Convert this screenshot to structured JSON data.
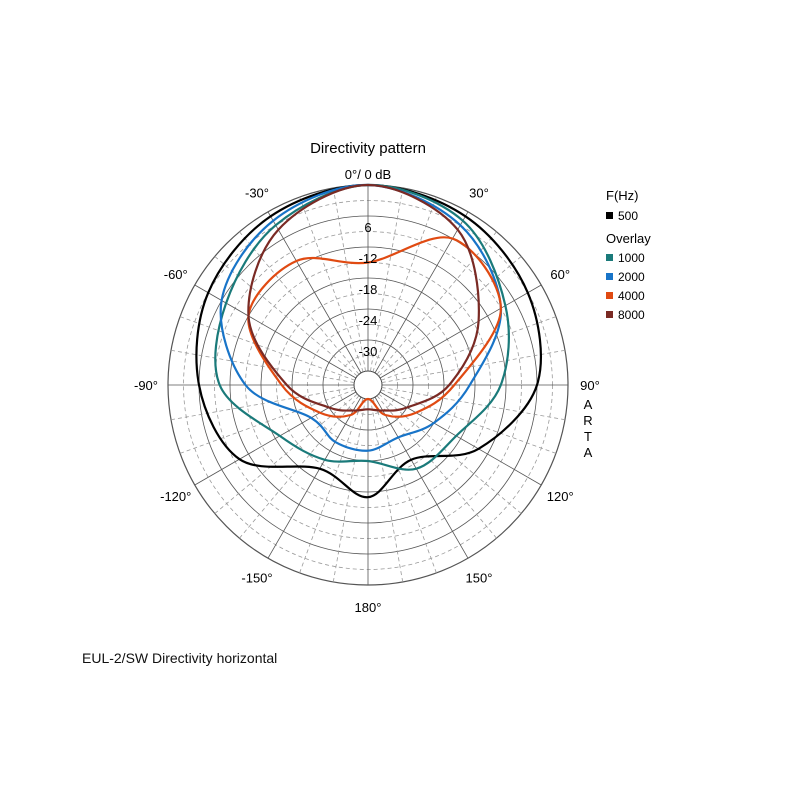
{
  "chart_data": {
    "type": "polar-line",
    "title": "Directivity pattern",
    "radial_unit": "dB",
    "radial_range": [
      -36,
      0
    ],
    "radial_labels": [
      "0°/ 0 dB",
      "6",
      "-12",
      "-18",
      "-24",
      "-30"
    ],
    "angle_labels": {
      "0": "",
      "30": "30°",
      "60": "60°",
      "90": "90°",
      "120": "120°",
      "150": "150°",
      "180": "180°",
      "-150": "-150°",
      "-120": "-120°",
      "-90": "-90°",
      "-60": "-60°",
      "-30": "-30°"
    },
    "side_label": "ARTA",
    "legend": {
      "header": "F(Hz)",
      "overlay_header": "Overlay"
    },
    "angles_deg": [
      0,
      30,
      60,
      90,
      120,
      150,
      180,
      210,
      240,
      270,
      300,
      330
    ],
    "series": [
      {
        "name": "500",
        "color": "#000000",
        "values": [
          0,
          -1,
          -3,
          -6,
          -14,
          -22,
          -17,
          -20,
          -10,
          -6,
          -3,
          -1
        ]
      },
      {
        "name": "1000",
        "color": "#1a7a7a",
        "values": [
          0,
          -2,
          -8,
          -13,
          -19,
          -20,
          -24,
          -22,
          -19,
          -10,
          -7,
          -3
        ]
      },
      {
        "name": "2000",
        "color": "#1874c8",
        "values": [
          0,
          -3,
          -9,
          -19,
          -24,
          -27,
          -26,
          -26,
          -26,
          -15,
          -6,
          -2
        ]
      },
      {
        "name": "4000",
        "color": "#e04a12",
        "values": [
          -15,
          -6,
          -9,
          -22,
          -28,
          -32,
          -36,
          -32,
          -28,
          -22,
          -12,
          -11
        ]
      },
      {
        "name": "8000",
        "color": "#7a2a24",
        "values": [
          0,
          -4,
          -14,
          -23,
          -30,
          -33,
          -34,
          -33,
          -30,
          -23,
          -12,
          -4
        ]
      }
    ]
  },
  "caption": "EUL-2/SW  Directivity horizontal"
}
